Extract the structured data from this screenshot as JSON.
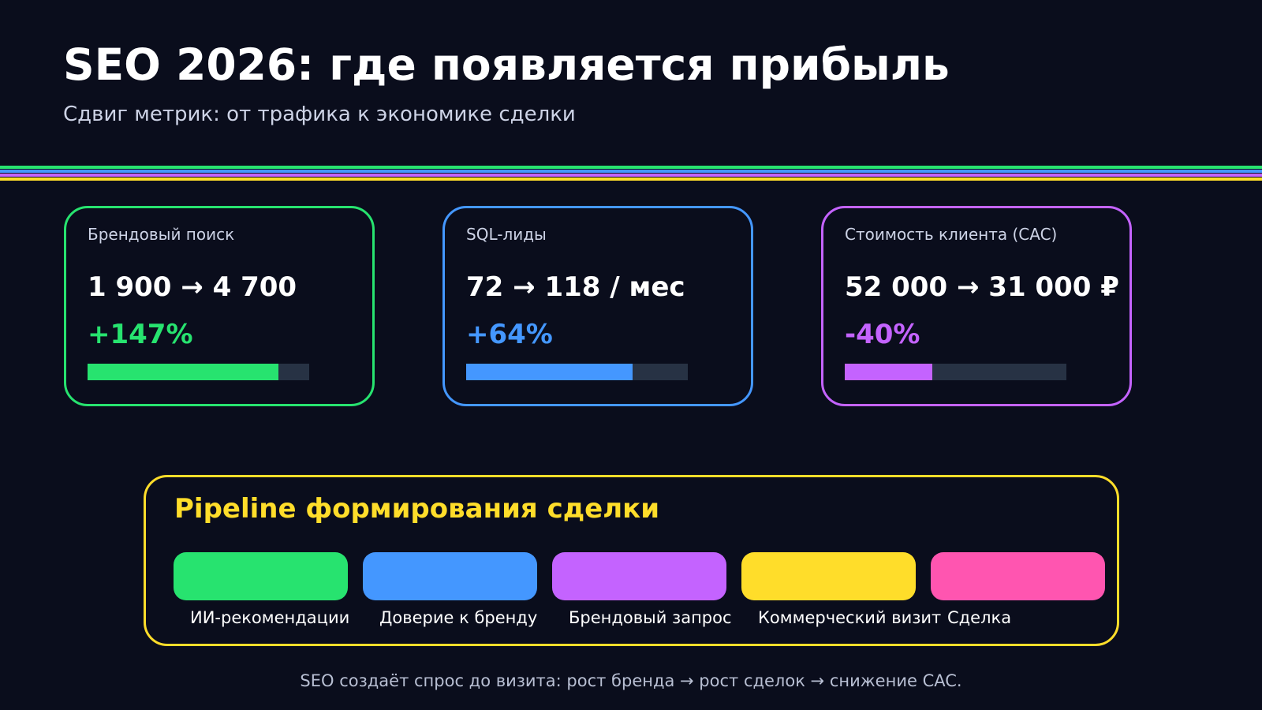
{
  "header": {
    "title": "SEO 2026: где появляется прибыль",
    "subtitle": "Сдвиг метрик: от трафика к экономике сделки"
  },
  "stripe_colors": [
    "#27e36f",
    "#4497ff",
    "#c463ff",
    "#ffdd2a"
  ],
  "cards": [
    {
      "label": "Брендовый поиск",
      "value": "1 900 → 4 700",
      "change": "+147%",
      "progress": 0.86,
      "color": "#27e36f"
    },
    {
      "label": "SQL-лиды",
      "value": "72 → 118 / мес",
      "change": "+64%",
      "progress": 0.75,
      "color": "#4497ff"
    },
    {
      "label": "Стоимость клиента (CAC)",
      "value": "52 000 → 31 000 ₽",
      "change": "-40%",
      "progress": 0.395,
      "color": "#c463ff"
    }
  ],
  "pipeline": {
    "title": "Pipeline формирования сделки",
    "color": "#ffdd2a",
    "steps": [
      {
        "label": "ИИ-рекомендации",
        "color": "#27e36f"
      },
      {
        "label": "Доверие к бренду",
        "color": "#4497ff"
      },
      {
        "label": "Брендовый запрос",
        "color": "#c463ff"
      },
      {
        "label": "Коммерческий визит",
        "color": "#ffdd2a"
      },
      {
        "label": "Сделка",
        "color": "#ff55b0"
      }
    ]
  },
  "footer": "SEO создаёт спрос до визита: рост бренда → рост сделок → снижение CAC."
}
